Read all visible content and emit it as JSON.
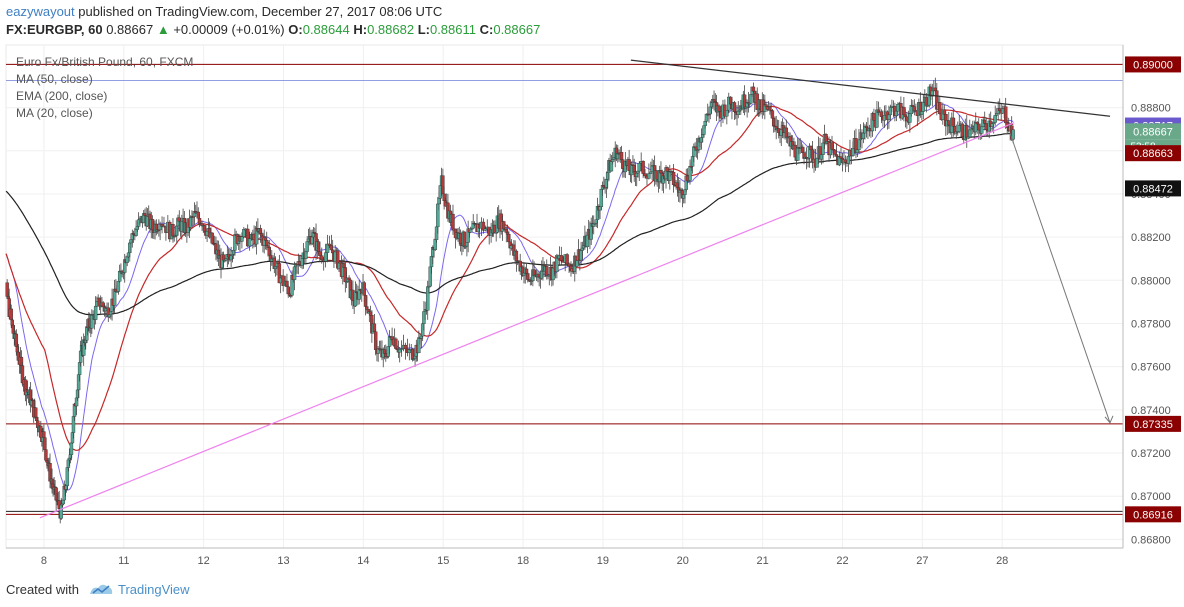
{
  "header": {
    "author": "eazywayout",
    "published_text": "published on TradingView.com, December 27, 2017 08:06 UTC",
    "symbol": "FX:EURGBP, 60",
    "last": "0.88667",
    "change": "+0.00009 (+0.01%)",
    "open_label": "O:",
    "open": "0.88644",
    "high_label": "H:",
    "high": "0.88682",
    "low_label": "L:",
    "low": "0.88611",
    "close_label": "C:",
    "close": "0.88667"
  },
  "legend": {
    "title": "Euro Fx/British Pound, 60, FXCM",
    "ma50": "MA (50, close)",
    "ema200": "EMA (200, close)",
    "ma20": "MA (20, close)"
  },
  "footer": {
    "created_with": "Created with",
    "brand": "TradingView"
  },
  "colors": {
    "up": "#54a896",
    "down": "#b23a3a",
    "ma20": "#7b68ee",
    "ma50": "#c62828",
    "ema200": "#212121",
    "support_resistance": "#8b0000",
    "trendline": "#ee82ee",
    "resistance_trend": "#333333",
    "projection": "#777777"
  },
  "chart_data": {
    "type": "candlestick",
    "x_labels": [
      "8",
      "11",
      "12",
      "13",
      "14",
      "15",
      "18",
      "19",
      "20",
      "21",
      "22",
      "27",
      "28"
    ],
    "y_ticks": [
      0.868,
      0.87,
      0.872,
      0.874,
      0.876,
      0.878,
      0.88,
      0.882,
      0.884,
      0.886,
      0.888,
      0.89
    ],
    "ylim": [
      0.8676,
      0.8909
    ],
    "grid": true,
    "horizontal_levels": [
      {
        "value": 0.89,
        "label": "0.89000"
      },
      {
        "value": 0.87335,
        "label": "0.87335"
      },
      {
        "value": 0.86916,
        "label": "0.86916"
      }
    ],
    "price_labels": [
      {
        "value": 0.88717,
        "label": "0.88717",
        "kind": "ma20"
      },
      {
        "value": 0.88667,
        "label": "0.88667",
        "kind": "last",
        "sublabel": "53:58"
      },
      {
        "value": 0.88663,
        "label": "0.88663",
        "kind": "ma50"
      },
      {
        "value": 0.88472,
        "label": "0.88472",
        "kind": "ema200"
      }
    ],
    "days": [
      {
        "label": "8",
        "start": 0.882,
        "points": [
          0.8821,
          0.8795,
          0.8778,
          0.8765,
          0.8752,
          0.8745,
          0.8735,
          0.8728,
          0.8712,
          0.87,
          0.8692,
          0.871,
          0.8735,
          0.8762,
          0.8775
        ]
      },
      {
        "label": "11",
        "start": 0.8775,
        "points": [
          0.8782,
          0.879,
          0.8786,
          0.8792,
          0.8805,
          0.8818,
          0.8825,
          0.883,
          0.8824,
          0.8828
        ]
      },
      {
        "label": "12",
        "start": 0.8828,
        "points": [
          0.8822,
          0.8826,
          0.8824,
          0.883,
          0.8828,
          0.882,
          0.8812,
          0.8806,
          0.8816,
          0.8822
        ]
      },
      {
        "label": "13",
        "start": 0.8822,
        "points": [
          0.8818,
          0.8822,
          0.8816,
          0.8808,
          0.88,
          0.8795,
          0.8806,
          0.8814,
          0.8822,
          0.8812
        ]
      },
      {
        "label": "14",
        "start": 0.8812,
        "points": [
          0.8814,
          0.8808,
          0.88,
          0.879,
          0.8798,
          0.8784,
          0.8768,
          0.8764,
          0.8775,
          0.8768
        ]
      },
      {
        "label": "15",
        "start": 0.8768,
        "points": [
          0.8766,
          0.877,
          0.879,
          0.8818,
          0.8845,
          0.883,
          0.8822,
          0.8818,
          0.8822,
          0.8826
        ]
      },
      {
        "label": "18",
        "start": 0.8826,
        "points": [
          0.8822,
          0.8828,
          0.8824,
          0.8812,
          0.8806,
          0.88,
          0.8802,
          0.8806,
          0.8804,
          0.881
        ]
      },
      {
        "label": "19",
        "start": 0.881,
        "points": [
          0.8806,
          0.8812,
          0.8818,
          0.8826,
          0.884,
          0.8852,
          0.886,
          0.8854,
          0.885,
          0.8852
        ]
      },
      {
        "label": "20",
        "start": 0.8852,
        "points": [
          0.885,
          0.8848,
          0.885,
          0.8846,
          0.884,
          0.885,
          0.8862,
          0.8872,
          0.8882,
          0.8878
        ]
      },
      {
        "label": "21",
        "start": 0.8878,
        "points": [
          0.8882,
          0.888,
          0.8884,
          0.8886,
          0.888,
          0.8878,
          0.8872,
          0.8868,
          0.8862,
          0.8858
        ]
      },
      {
        "label": "22",
        "start": 0.8858,
        "points": [
          0.886,
          0.8856,
          0.8864,
          0.8858,
          0.8854,
          0.886,
          0.8866,
          0.8872,
          0.8876,
          0.8878,
          0.888,
          0.8876,
          0.8878,
          0.8882,
          0.8888,
          0.8876,
          0.8872,
          0.887,
          0.8868,
          0.887,
          0.8872,
          0.8876,
          0.8878,
          0.8866
        ]
      }
    ],
    "annotations": {
      "support_trendline": {
        "from": {
          "day_index": 0.4,
          "price": 0.869
        },
        "to": {
          "day_index": 12.6,
          "price": 0.8873
        }
      },
      "resistance_trendline": {
        "from": {
          "day_index": 7.8,
          "price": 0.8902
        },
        "to": {
          "day_index": 13.8,
          "price": 0.8876
        }
      },
      "projection_arrow": {
        "from": {
          "day_index": 12.55,
          "price": 0.8868
        },
        "to": {
          "day_index": 13.8,
          "price": 0.8734
        }
      }
    }
  }
}
